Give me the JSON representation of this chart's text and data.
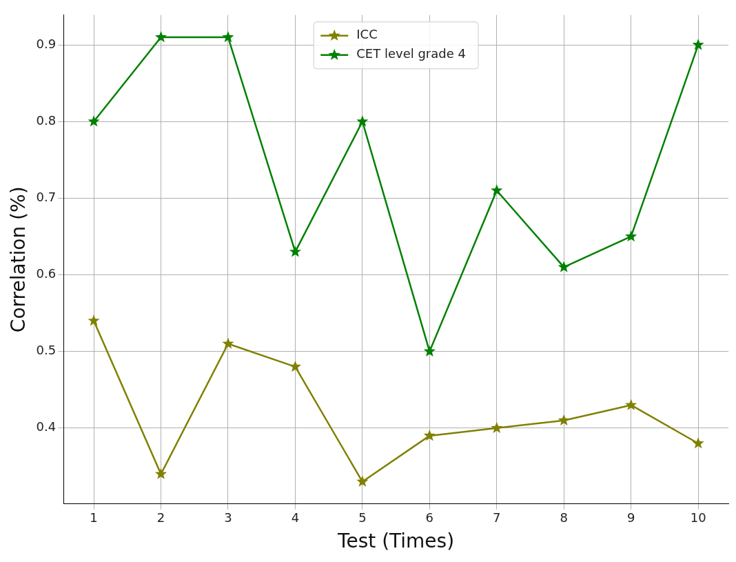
{
  "chart_data": {
    "type": "line",
    "xlabel": "Test (Times)",
    "ylabel": "Correlation (%)",
    "x": [
      1,
      2,
      3,
      4,
      5,
      6,
      7,
      8,
      9,
      10
    ],
    "series": [
      {
        "name": "ICC",
        "color": "#808000",
        "values": [
          0.54,
          0.34,
          0.51,
          0.48,
          0.33,
          0.39,
          0.4,
          0.41,
          0.43,
          0.38
        ]
      },
      {
        "name": "CET level grade 4",
        "color": "#008000",
        "values": [
          0.8,
          0.91,
          0.91,
          0.63,
          0.8,
          0.5,
          0.71,
          0.61,
          0.65,
          0.9
        ]
      }
    ],
    "xlim": [
      0.55,
      10.45
    ],
    "xticks": [
      1,
      2,
      3,
      4,
      5,
      6,
      7,
      8,
      9,
      10
    ],
    "ylim": [
      0.301,
      0.939
    ],
    "yticks": [
      0.4,
      0.5,
      0.6,
      0.7,
      0.8,
      0.9
    ],
    "grid": true,
    "legend": "top",
    "marker": "star",
    "line_style": "solid"
  }
}
